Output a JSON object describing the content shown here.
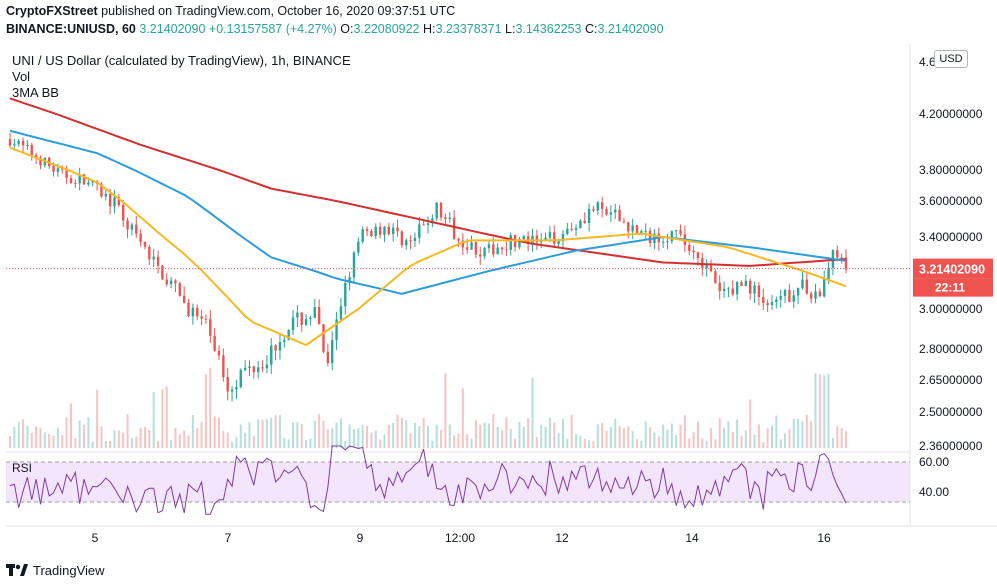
{
  "header": {
    "publisher": "CryptoFXStreet",
    "text": " published on TradingView.com, October 16, 2020 09:37:51 UTC"
  },
  "ohlc": {
    "symbol": "BINANCE:UNIUSD, 60",
    "change": "3.21402090 +0.13157587 (+4.27%)",
    "o_label": "O:",
    "o": "3.22080922",
    "h_label": "H:",
    "h": "3.23378371",
    "l_label": "L:",
    "l": "3.14362253",
    "c_label": "C:",
    "c": "3.21402090"
  },
  "legend": {
    "title": "UNI / US Dollar (calculated by TradingView), 1h, BINANCE",
    "vol": "Vol",
    "ma": "3MA BB",
    "rsi": "RSI"
  },
  "currency_button": "USD",
  "countdown": "22:11",
  "footer": {
    "brand": "TradingView"
  },
  "colors": {
    "up": "#26a69a",
    "down": "#ef5350",
    "ma_fast": "#f5b924",
    "ma_mid": "#2d9cdb",
    "ma_slow": "#d32f2f",
    "rsi_line": "#7e3aa8",
    "rsi_fill": "#f3e5fb",
    "price_tag": "#ef5350"
  },
  "chart_data": {
    "type": "candlestick",
    "title": "UNI / US Dollar (calculated by TradingView), 1h, BINANCE",
    "y_axis_ticks": [
      "4.6",
      "4.20000000",
      "3.80000000",
      "3.60000000",
      "3.40000000",
      "3.00000000",
      "2.80000000",
      "2.65000000",
      "2.50000000",
      "2.36000000"
    ],
    "x_axis_ticks": [
      "5",
      "7",
      "9",
      "12:00",
      "12",
      "14",
      "16"
    ],
    "last_price": "3.21402090",
    "price_anchors": [
      {
        "t": 0,
        "p": 4.02
      },
      {
        "t": 10,
        "p": 3.92
      },
      {
        "t": 22,
        "p": 3.78
      },
      {
        "t": 36,
        "p": 3.72
      },
      {
        "t": 48,
        "p": 3.58
      },
      {
        "t": 62,
        "p": 3.32
      },
      {
        "t": 78,
        "p": 3.06
      },
      {
        "t": 92,
        "p": 2.88
      },
      {
        "t": 100,
        "p": 2.62
      },
      {
        "t": 108,
        "p": 2.7
      },
      {
        "t": 118,
        "p": 2.76
      },
      {
        "t": 128,
        "p": 2.92
      },
      {
        "t": 140,
        "p": 2.98
      },
      {
        "t": 146,
        "p": 2.7
      },
      {
        "t": 154,
        "p": 3.14
      },
      {
        "t": 162,
        "p": 3.42
      },
      {
        "t": 172,
        "p": 3.46
      },
      {
        "t": 184,
        "p": 3.36
      },
      {
        "t": 196,
        "p": 3.56
      },
      {
        "t": 206,
        "p": 3.4
      },
      {
        "t": 218,
        "p": 3.3
      },
      {
        "t": 230,
        "p": 3.38
      },
      {
        "t": 244,
        "p": 3.36
      },
      {
        "t": 256,
        "p": 3.44
      },
      {
        "t": 268,
        "p": 3.56
      },
      {
        "t": 280,
        "p": 3.5
      },
      {
        "t": 292,
        "p": 3.4
      },
      {
        "t": 304,
        "p": 3.42
      },
      {
        "t": 316,
        "p": 3.3
      },
      {
        "t": 326,
        "p": 3.08
      },
      {
        "t": 338,
        "p": 3.14
      },
      {
        "t": 350,
        "p": 3.0
      },
      {
        "t": 362,
        "p": 3.12
      },
      {
        "t": 372,
        "p": 3.08
      },
      {
        "t": 378,
        "p": 3.3
      },
      {
        "t": 384,
        "p": 3.214
      }
    ],
    "ma_fast": [
      {
        "t": 0,
        "p": 3.96
      },
      {
        "t": 40,
        "p": 3.72
      },
      {
        "t": 80,
        "p": 3.3
      },
      {
        "t": 110,
        "p": 2.94
      },
      {
        "t": 136,
        "p": 2.82
      },
      {
        "t": 160,
        "p": 3.0
      },
      {
        "t": 185,
        "p": 3.24
      },
      {
        "t": 210,
        "p": 3.38
      },
      {
        "t": 250,
        "p": 3.38
      },
      {
        "t": 290,
        "p": 3.42
      },
      {
        "t": 330,
        "p": 3.34
      },
      {
        "t": 384,
        "p": 3.12
      }
    ],
    "ma_mid": [
      {
        "t": 0,
        "p": 4.08
      },
      {
        "t": 40,
        "p": 3.92
      },
      {
        "t": 80,
        "p": 3.64
      },
      {
        "t": 120,
        "p": 3.28
      },
      {
        "t": 150,
        "p": 3.16
      },
      {
        "t": 180,
        "p": 3.08
      },
      {
        "t": 220,
        "p": 3.2
      },
      {
        "t": 260,
        "p": 3.32
      },
      {
        "t": 300,
        "p": 3.4
      },
      {
        "t": 340,
        "p": 3.34
      },
      {
        "t": 384,
        "p": 3.26
      }
    ],
    "ma_slow": [
      {
        "t": 0,
        "p": 4.32
      },
      {
        "t": 60,
        "p": 3.98
      },
      {
        "t": 120,
        "p": 3.68
      },
      {
        "t": 180,
        "p": 3.52
      },
      {
        "t": 240,
        "p": 3.36
      },
      {
        "t": 300,
        "p": 3.25
      },
      {
        "t": 340,
        "p": 3.23
      },
      {
        "t": 384,
        "p": 3.27
      }
    ],
    "rsi_axis_ticks": [
      "60.00",
      "40.00"
    ]
  }
}
